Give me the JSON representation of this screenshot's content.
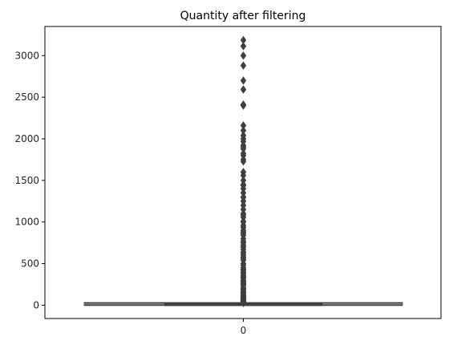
{
  "chart_data": {
    "type": "box",
    "title": "Quantity after filtering",
    "xlabel": "",
    "ylabel": "",
    "categories": [
      "0"
    ],
    "ylim": [
      -160,
      3350
    ],
    "yticks": [
      0,
      500,
      1000,
      1500,
      2000,
      2500,
      3000
    ],
    "grid": false,
    "colors": {
      "box_fill": "#3f3f3f",
      "box_edge": "#3f3f3f",
      "flier": "#3f3f3f",
      "axis": "#000000"
    },
    "box": {
      "category": "0",
      "whisker_low": 1,
      "q1": 2,
      "median": 6,
      "q3": 12,
      "whisker_high": 27
    },
    "outliers": [
      3186,
      3114,
      3000,
      2880,
      2700,
      2592,
      2412,
      2400,
      2160,
      2100,
      2040,
      2000,
      1968,
      1920,
      1900,
      1880,
      1824,
      1800,
      1750,
      1728,
      1600,
      1560,
      1500,
      1450,
      1440,
      1400,
      1350,
      1300,
      1296,
      1250,
      1200,
      1152,
      1100,
      1080,
      1056,
      1008,
      1000,
      960,
      936,
      900,
      880,
      864,
      840,
      800,
      768,
      750,
      720,
      700,
      672,
      640,
      624,
      600,
      576,
      560,
      540,
      500,
      480,
      450,
      432,
      420,
      400,
      384,
      360,
      350,
      336,
      324,
      300,
      288,
      280,
      270,
      256,
      250,
      240,
      216,
      200,
      192,
      180,
      160,
      150,
      144,
      128,
      120,
      112,
      108,
      100,
      96,
      90,
      84,
      80,
      75,
      72,
      70,
      64,
      60,
      56,
      54,
      50,
      48,
      45,
      42,
      40,
      36,
      32,
      30,
      28
    ]
  }
}
